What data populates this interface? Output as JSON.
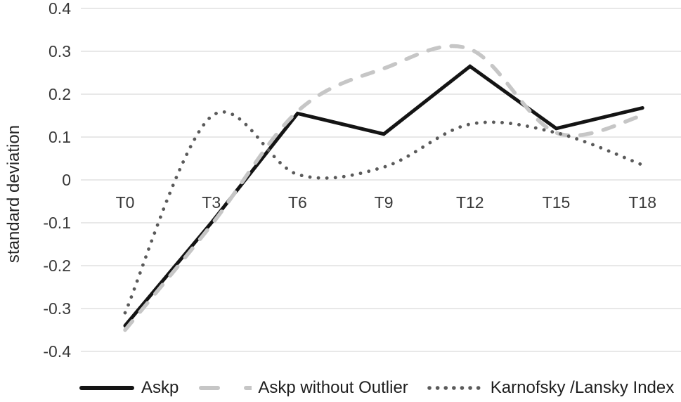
{
  "figure": {
    "ylabel": "standard deviation",
    "background": "#ffffff",
    "gridline_color": "#d9d9d9",
    "tick_text_color": "#383838"
  },
  "chart_data": {
    "type": "line",
    "title": "",
    "xlabel": "",
    "ylabel": "standard deviation",
    "categories": [
      "T0",
      "T3",
      "T6",
      "T9",
      "T12",
      "T15",
      "T18"
    ],
    "series": [
      {
        "name": "Askp",
        "values": [
          -0.34,
          -0.1,
          0.155,
          0.107,
          0.265,
          0.12,
          0.168
        ],
        "style": "solid",
        "smooth": false,
        "color": "#141414"
      },
      {
        "name": "Askp without Outlier",
        "values": [
          -0.35,
          -0.105,
          0.16,
          0.26,
          0.305,
          0.11,
          0.15
        ],
        "style": "dashed",
        "smooth": true,
        "color": "#c6c6c6"
      },
      {
        "name": "Karnofsky /Lansky Index",
        "values": [
          -0.31,
          0.148,
          0.013,
          0.03,
          0.13,
          0.11,
          0.035
        ],
        "style": "dotted",
        "smooth": true,
        "color": "#5a5a5a"
      }
    ],
    "ylim": [
      -0.4,
      0.4
    ],
    "ytick_step": 0.1,
    "yticks": [
      "0.4",
      "0.3",
      "0.2",
      "0.1",
      "0",
      "-0.1",
      "-0.2",
      "-0.3",
      "-0.4"
    ],
    "grid": "horizontal",
    "legend_position": "bottom"
  }
}
